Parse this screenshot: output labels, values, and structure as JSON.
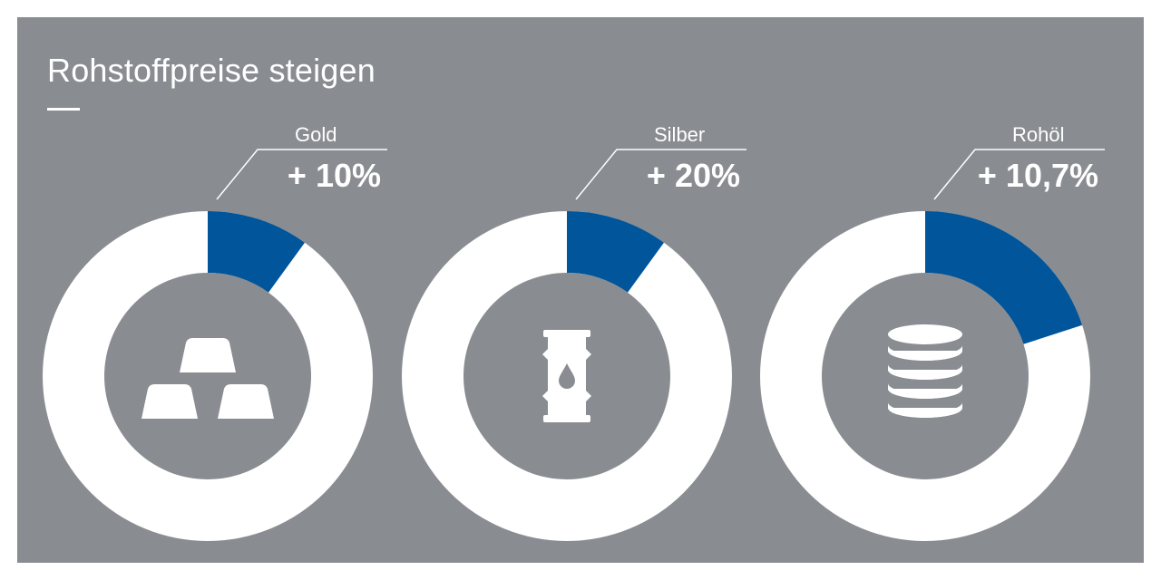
{
  "title": "Rohstoffpreise steigen",
  "colors": {
    "panel": "#898c91",
    "accent": "#00559b",
    "ring": "#ffffff",
    "inner": "#898c91",
    "text": "#ffffff"
  },
  "chart_data": {
    "type": "pie",
    "title": "Rohstoffpreise steigen",
    "items": [
      {
        "category": "Gold",
        "label": "+ 10%",
        "value": 10,
        "icon": "gold-bars-icon"
      },
      {
        "category": "Silber",
        "label": "+ 20%",
        "value": 10,
        "icon": "oil-barrel-icon"
      },
      {
        "category": "Rohöl",
        "label": "+ 10,7%",
        "value": 20,
        "icon": "coin-stack-icon"
      }
    ]
  }
}
